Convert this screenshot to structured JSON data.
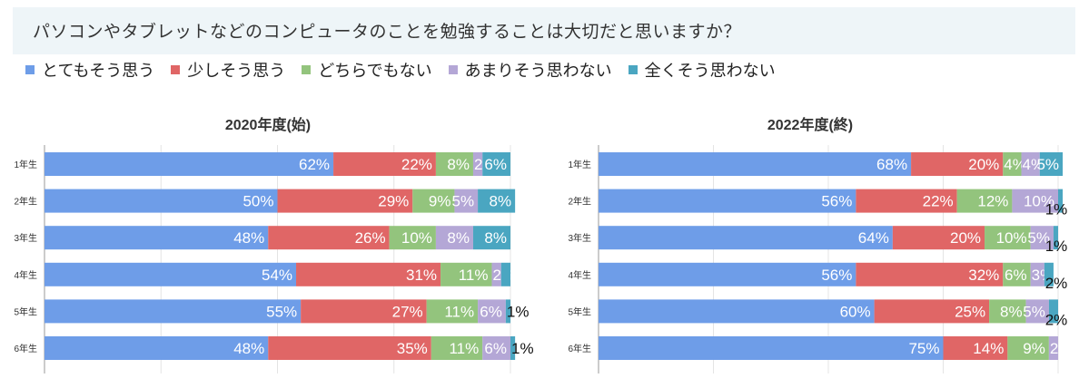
{
  "page_title": "パソコンやタブレットなどのコンピュータのことを勉強することは大切だと思いますか？",
  "legend": [
    {
      "label": "とてもそう思う",
      "color": "#6e9de8"
    },
    {
      "label": "少しそう思う",
      "color": "#e06666"
    },
    {
      "label": "どちらでもない",
      "color": "#93c47d"
    },
    {
      "label": "あまりそう思わない",
      "color": "#b4a7d6"
    },
    {
      "label": "全くそう思わない",
      "color": "#4aa6c1"
    }
  ],
  "chart_data": [
    {
      "type": "bar",
      "orientation": "horizontal",
      "stacked": true,
      "title": "2020年度(始)",
      "categories": [
        "1年生",
        "2年生",
        "3年生",
        "4年生",
        "5年生",
        "6年生"
      ],
      "series": [
        {
          "name": "とてもそう思う",
          "values": [
            62,
            50,
            48,
            54,
            55,
            48
          ]
        },
        {
          "name": "少しそう思う",
          "values": [
            22,
            29,
            26,
            31,
            27,
            35
          ]
        },
        {
          "name": "どちらでもない",
          "values": [
            8,
            9,
            10,
            11,
            11,
            11
          ]
        },
        {
          "name": "あまりそう思わない",
          "values": [
            2,
            5,
            8,
            2,
            6,
            6
          ]
        },
        {
          "name": "全くそう思わない",
          "values": [
            6,
            8,
            8,
            2,
            1,
            1
          ]
        }
      ],
      "data_labels": [
        [
          "62%",
          "22%",
          "8%",
          "2%",
          "6%"
        ],
        [
          "50%",
          "29%",
          "9%",
          "5%",
          "8%"
        ],
        [
          "48%",
          "26%",
          "10%",
          "8%",
          "8%"
        ],
        [
          "54%",
          "31%",
          "11%",
          "2%",
          ""
        ],
        [
          "55%",
          "27%",
          "11%",
          "6%",
          "1%"
        ],
        [
          "48%",
          "35%",
          "11%",
          "6%",
          "1%"
        ]
      ],
      "xlim": [
        0,
        100
      ]
    },
    {
      "type": "bar",
      "orientation": "horizontal",
      "stacked": true,
      "title": "2022年度(終)",
      "categories": [
        "1年生",
        "2年生",
        "3年生",
        "4年生",
        "5年生",
        "6年生"
      ],
      "series": [
        {
          "name": "とてもそう思う",
          "values": [
            68,
            56,
            64,
            56,
            60,
            75
          ]
        },
        {
          "name": "少しそう思う",
          "values": [
            20,
            22,
            20,
            32,
            25,
            14
          ]
        },
        {
          "name": "どちらでもない",
          "values": [
            4,
            12,
            10,
            6,
            8,
            9
          ]
        },
        {
          "name": "あまりそう思わない",
          "values": [
            4,
            10,
            5,
            3,
            5,
            2
          ]
        },
        {
          "name": "全くそう思わない",
          "values": [
            5,
            1,
            1,
            2,
            2,
            0
          ]
        }
      ],
      "data_labels": [
        [
          "68%",
          "20%",
          "4%",
          "4%",
          "5%"
        ],
        [
          "56%",
          "22%",
          "12%",
          "10%",
          "1%"
        ],
        [
          "64%",
          "20%",
          "10%",
          "5%",
          "1%"
        ],
        [
          "56%",
          "32%",
          "6%",
          "3%",
          "2%"
        ],
        [
          "60%",
          "25%",
          "8%",
          "5%",
          "2%"
        ],
        [
          "75%",
          "14%",
          "9%",
          "2%",
          ""
        ]
      ],
      "xlim": [
        0,
        100
      ]
    }
  ]
}
